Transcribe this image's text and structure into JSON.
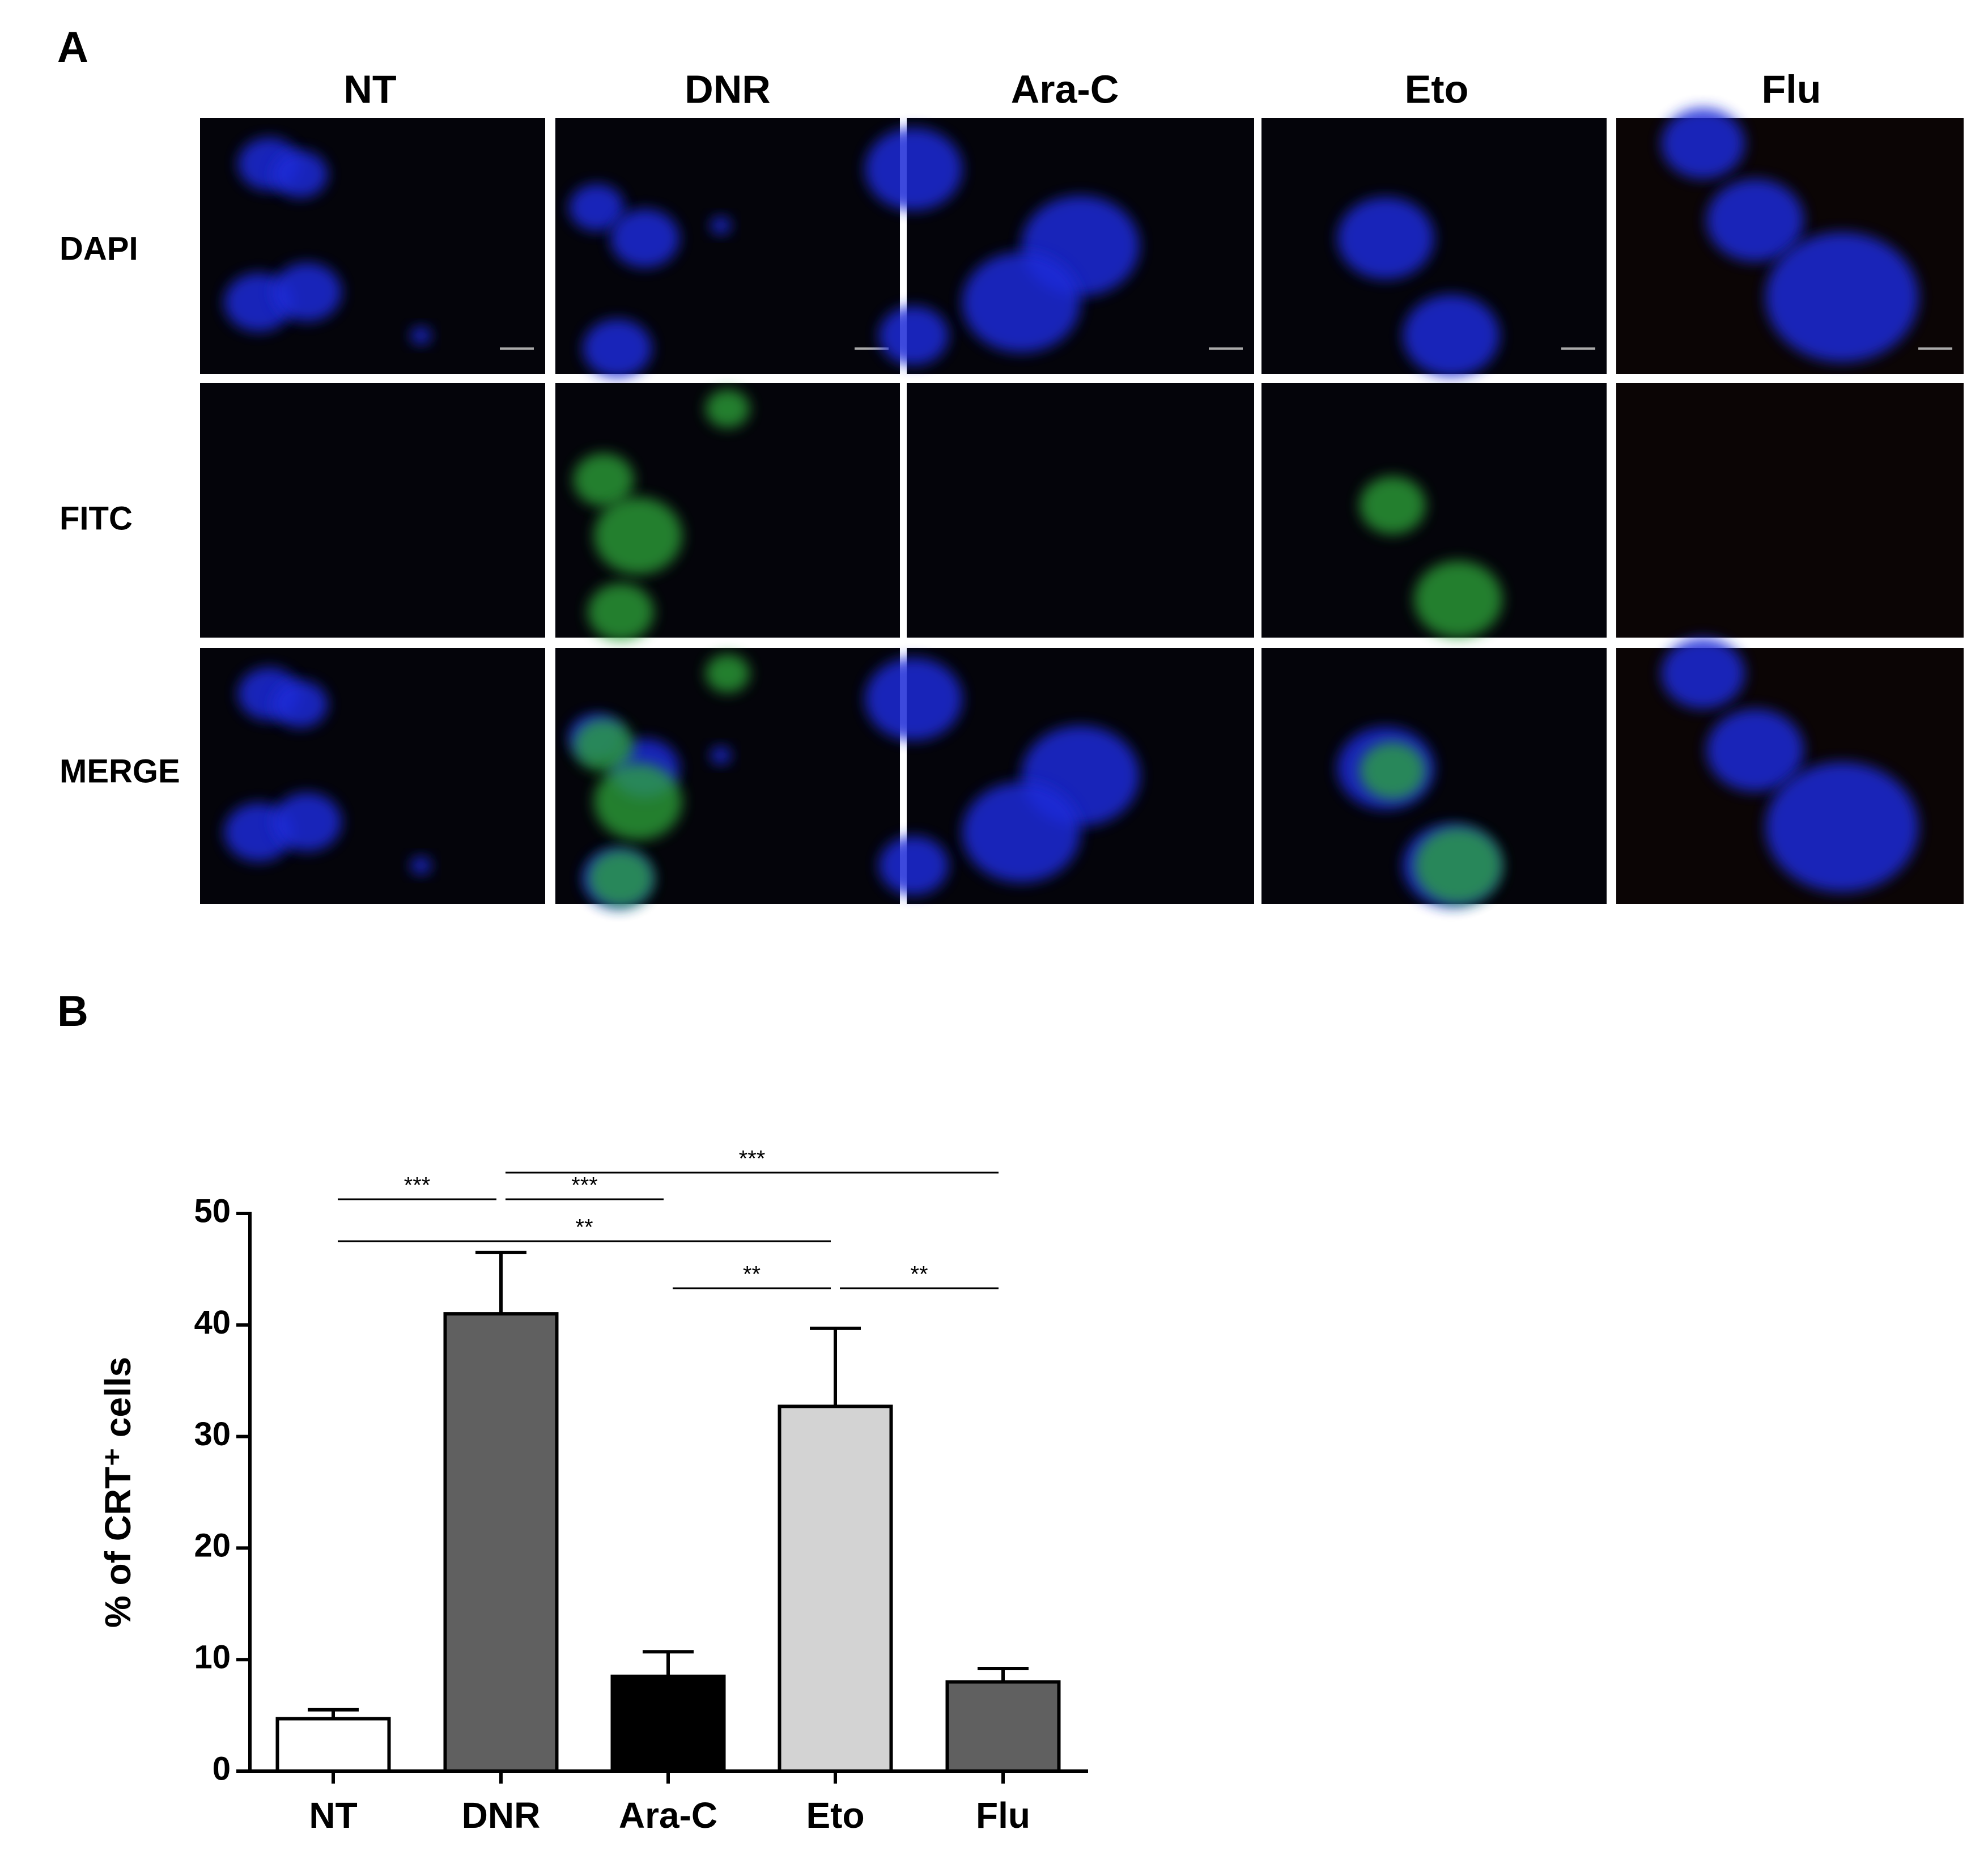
{
  "panel_a": {
    "label": "A",
    "columns": [
      "NT",
      "DNR",
      "Ara-C",
      "Eto",
      "Flu"
    ],
    "rows": [
      "DAPI",
      "FITC",
      "MERGE"
    ]
  },
  "chart_data": {
    "type": "bar",
    "panel_label": "B",
    "y_label": "% of CRT⁺ cells",
    "categories": [
      "NT",
      "DNR",
      "Ara-C",
      "Eto",
      "Flu"
    ],
    "values": [
      4.7,
      41,
      8.5,
      32.7,
      8
    ],
    "errors": [
      0.8,
      5.5,
      2.2,
      7,
      1.2
    ],
    "colors": [
      "#ffffff",
      "#606060",
      "#000000",
      "#d3d3d3",
      "#606060"
    ],
    "ylim": [
      0,
      50
    ],
    "yticks": [
      0,
      10,
      20,
      30,
      40,
      50
    ],
    "comparisons": [
      {
        "pair": [
          "NT",
          "DNR"
        ],
        "label": "***"
      },
      {
        "pair": [
          "DNR",
          "Ara-C"
        ],
        "label": "***"
      },
      {
        "pair": [
          "DNR",
          "Flu"
        ],
        "label": "***"
      },
      {
        "pair": [
          "NT",
          "Eto"
        ],
        "label": "**"
      },
      {
        "pair": [
          "Ara-C",
          "Eto"
        ],
        "label": "**"
      },
      {
        "pair": [
          "Eto",
          "Flu"
        ],
        "label": "**"
      }
    ]
  }
}
